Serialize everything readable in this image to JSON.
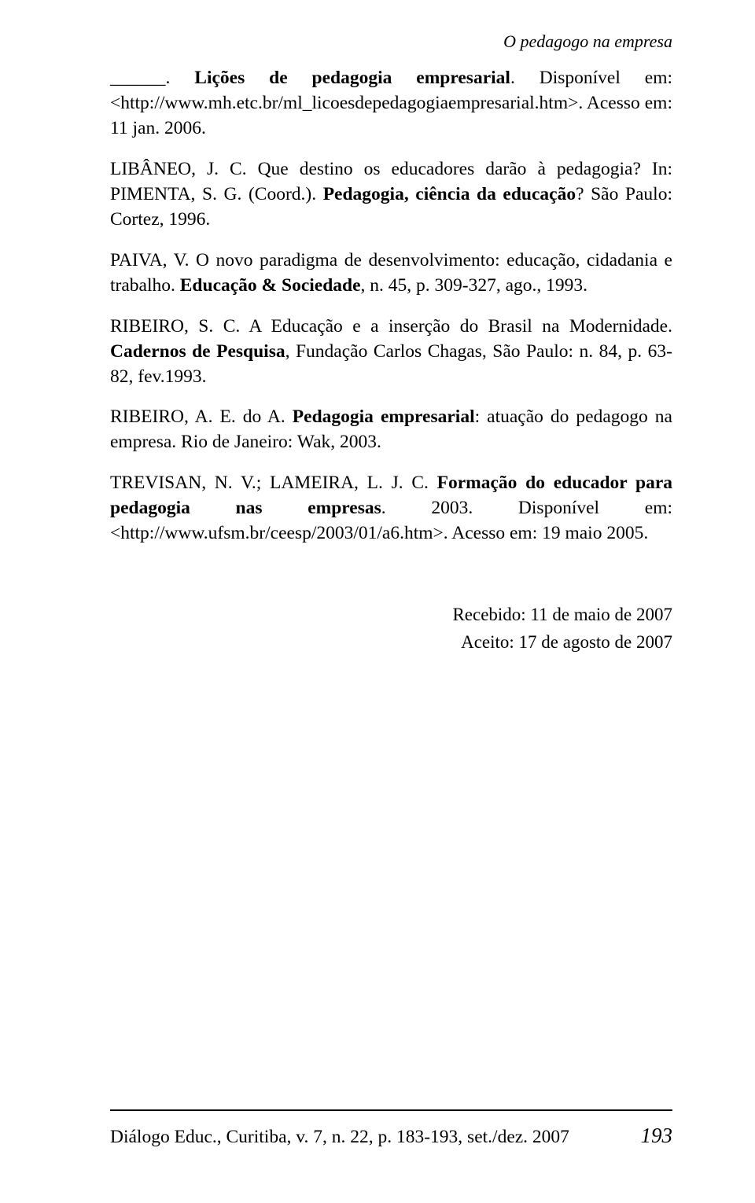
{
  "running_head": "O pedagogo na empresa",
  "refs": [
    {
      "parts": [
        {
          "t": "______. ",
          "b": false
        },
        {
          "t": "Lições de pedagogia empresarial",
          "b": true
        },
        {
          "t": ". Disponível em: <http://www.mh.etc.br/ml_licoesdepedagogiaempresarial.htm>. Acesso em: 11 jan. 2006.",
          "b": false
        }
      ]
    },
    {
      "parts": [
        {
          "t": "LIBÂNEO, J. C. Que destino os educadores darão à pedagogia? In: PIMENTA, S. G. (Coord.). ",
          "b": false
        },
        {
          "t": "Pedagogia, ciência da educação",
          "b": true
        },
        {
          "t": "? São Paulo: Cortez, 1996.",
          "b": false
        }
      ]
    },
    {
      "parts": [
        {
          "t": "PAIVA, V. O novo paradigma de desenvolvimento: educação, cidadania e trabalho. ",
          "b": false
        },
        {
          "t": "Educação & Sociedade",
          "b": true
        },
        {
          "t": ", n. 45, p. 309-327, ago., 1993.",
          "b": false
        }
      ]
    },
    {
      "parts": [
        {
          "t": "RIBEIRO, S. C. A Educação e a inserção do Brasil na Modernidade. ",
          "b": false
        },
        {
          "t": "Cadernos de Pesquisa",
          "b": true
        },
        {
          "t": ", Fundação Carlos Chagas, São Paulo: n. 84, p. 63-82, fev.1993.",
          "b": false
        }
      ]
    },
    {
      "parts": [
        {
          "t": "RIBEIRO, A. E. do A. ",
          "b": false
        },
        {
          "t": "Pedagogia empresarial",
          "b": true
        },
        {
          "t": ": atuação do pedagogo na empresa. Rio de Janeiro: Wak, 2003.",
          "b": false
        }
      ]
    },
    {
      "parts": [
        {
          "t": "TREVISAN, N. V.; LAMEIRA, L. J. C. ",
          "b": false
        },
        {
          "t": "Formação do educador para pedagogia nas empresas",
          "b": true
        },
        {
          "t": ". 2003. Disponível em: <http://www.ufsm.br/ceesp/2003/01/a6.htm>. Acesso em: 19 maio 2005.",
          "b": false
        }
      ]
    }
  ],
  "received": {
    "line1": "Recebido: 11 de maio de 2007",
    "line2": "Aceito: 17 de agosto de 2007"
  },
  "footer": {
    "citation": "Diálogo Educ., Curitiba, v. 7, n. 22,  p. 183-193, set./dez. 2007",
    "page_number": "193"
  }
}
